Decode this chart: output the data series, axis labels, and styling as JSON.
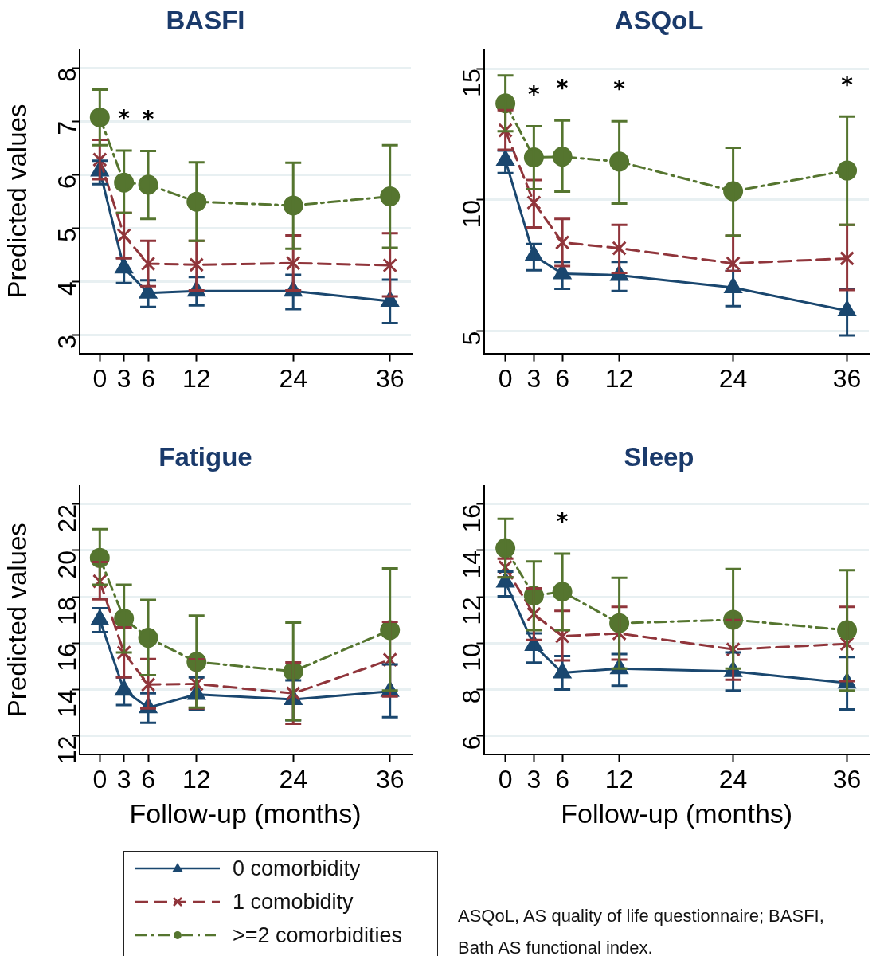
{
  "chart_data": [
    {
      "type": "line",
      "title": "BASFI",
      "ylabel": "Predicted values",
      "x": [
        0,
        3,
        6,
        12,
        24,
        36
      ],
      "xlim": [
        -2.5,
        38.6
      ],
      "xticks": [
        0,
        3,
        6,
        12,
        24,
        36
      ],
      "ylim": [
        2.65,
        8.35
      ],
      "yticks": [
        3,
        4,
        5,
        6,
        7,
        8
      ],
      "grid": "y",
      "legend": "bottom",
      "series": [
        {
          "name": "0 comorbidity",
          "color": "#1a476f",
          "marker": "triangle",
          "line_style": "solid",
          "values": [
            6.07,
            4.25,
            3.78,
            3.82,
            3.82,
            3.63
          ],
          "errors": [
            [
              5.82,
              6.26
            ],
            [
              3.97,
              4.44
            ],
            [
              3.52,
              4.02
            ],
            [
              3.55,
              4.08
            ],
            [
              3.48,
              4.12
            ],
            [
              3.22,
              4.03
            ]
          ]
        },
        {
          "name": "1 comobidity",
          "color": "#90353b",
          "marker": "cross",
          "line_style": "dashed",
          "values": [
            6.28,
            4.86,
            4.33,
            4.31,
            4.34,
            4.3
          ],
          "errors": [
            [
              5.91,
              6.65
            ],
            [
              4.43,
              5.28
            ],
            [
              3.91,
              4.76
            ],
            [
              3.83,
              4.76
            ],
            [
              3.83,
              4.86
            ],
            [
              3.72,
              4.9
            ]
          ]
        },
        {
          "name": ">=2 comorbidities",
          "color": "#55752f",
          "marker": "circle",
          "line_style": "dashdot",
          "values": [
            7.07,
            5.85,
            5.81,
            5.49,
            5.42,
            5.59
          ],
          "errors": [
            [
              6.55,
              7.59
            ],
            [
              5.28,
              6.45
            ],
            [
              5.17,
              6.44
            ],
            [
              4.76,
              6.23
            ],
            [
              4.61,
              6.22
            ],
            [
              4.63,
              6.55
            ]
          ]
        }
      ],
      "annotations": [
        {
          "text": "*",
          "x": 3,
          "y": 5.85
        },
        {
          "text": "*",
          "x": 6,
          "y": 5.81
        }
      ]
    },
    {
      "type": "line",
      "title": "ASQoL",
      "x": [
        0,
        3,
        6,
        12,
        24,
        36
      ],
      "xlim": [
        -2.2,
        38.3
      ],
      "xticks": [
        0,
        3,
        6,
        12,
        24,
        36
      ],
      "ylim": [
        4.15,
        15.75
      ],
      "yticks": [
        5,
        10,
        15
      ],
      "grid": "y",
      "legend": "bottom",
      "series": [
        {
          "name": "0 comorbidity",
          "color": "#1a476f",
          "marker": "triangle",
          "line_style": "solid",
          "values": [
            11.52,
            7.87,
            7.19,
            7.13,
            6.66,
            5.78
          ],
          "errors": [
            [
              11.02,
              11.88
            ],
            [
              7.32,
              8.32
            ],
            [
              6.61,
              7.64
            ],
            [
              6.53,
              7.64
            ],
            [
              5.95,
              7.29
            ],
            [
              4.84,
              6.61
            ]
          ]
        },
        {
          "name": "1 comobidity",
          "color": "#90353b",
          "marker": "cross",
          "line_style": "dashed",
          "values": [
            12.65,
            9.9,
            8.38,
            8.16,
            7.58,
            7.77
          ],
          "errors": [
            [
              11.91,
              13.42
            ],
            [
              8.95,
              10.76
            ],
            [
              7.48,
              9.28
            ],
            [
              7.22,
              9.05
            ],
            [
              7.29,
              8.63
            ],
            [
              6.57,
              9.05
            ]
          ]
        },
        {
          "name": ">=2 comorbidities",
          "color": "#55752f",
          "marker": "circle",
          "line_style": "dashdot",
          "values": [
            13.68,
            11.62,
            11.65,
            11.46,
            10.33,
            11.12
          ],
          "errors": [
            [
              12.62,
              14.74
            ],
            [
              10.41,
              12.81
            ],
            [
              10.32,
              13.03
            ],
            [
              9.86,
              13.0
            ],
            [
              8.64,
              11.99
            ],
            [
              9.05,
              13.18
            ]
          ]
        }
      ],
      "annotations": [
        {
          "text": "*",
          "x": 3,
          "y": 11.62
        },
        {
          "text": "*",
          "x": 6,
          "y": 11.65
        },
        {
          "text": "*",
          "x": 12,
          "y": 11.46
        },
        {
          "text": "*",
          "x": 36,
          "y": 13.18
        }
      ]
    },
    {
      "type": "line",
      "title": "Fatigue",
      "ylabel": "Predicted values",
      "xlabel": "Follow-up (months)",
      "x": [
        0,
        3,
        6,
        12,
        24,
        36
      ],
      "xlim": [
        -2.5,
        38.6
      ],
      "xticks": [
        0,
        3,
        6,
        12,
        24,
        36
      ],
      "ylim": [
        11.2,
        22.8
      ],
      "yticks": [
        12,
        14,
        16,
        18,
        20,
        22
      ],
      "grid": "y",
      "legend": "bottom",
      "series": [
        {
          "name": "0 comorbidity",
          "color": "#1a476f",
          "marker": "triangle",
          "line_style": "solid",
          "values": [
            17.01,
            13.97,
            13.21,
            13.79,
            13.57,
            13.92
          ],
          "errors": [
            [
              16.47,
              17.51
            ],
            [
              13.33,
              14.52
            ],
            [
              12.56,
              13.83
            ],
            [
              13.1,
              14.52
            ],
            [
              12.67,
              14.39
            ],
            [
              12.8,
              15.08
            ]
          ]
        },
        {
          "name": "1 comobidity",
          "color": "#90353b",
          "marker": "cross",
          "line_style": "dashed",
          "values": [
            18.67,
            15.59,
            14.21,
            14.24,
            13.83,
            15.28
          ],
          "errors": [
            [
              17.89,
              19.5
            ],
            [
              14.52,
              16.68
            ],
            [
              13.18,
              15.31
            ],
            [
              13.18,
              15.3
            ],
            [
              12.52,
              15.17
            ],
            [
              13.7,
              16.92
            ]
          ]
        },
        {
          "name": ">=2 comorbidities",
          "color": "#55752f",
          "marker": "circle",
          "line_style": "dashdot",
          "values": [
            19.68,
            17.06,
            16.23,
            15.19,
            14.78,
            16.56
          ],
          "errors": [
            [
              18.52,
              20.92
            ],
            [
              15.6,
              18.52
            ],
            [
              14.62,
              17.87
            ],
            [
              13.21,
              17.19
            ],
            [
              12.67,
              16.89
            ],
            [
              13.95,
              19.23
            ]
          ]
        }
      ]
    },
    {
      "type": "line",
      "title": "Sleep",
      "xlabel": "Follow-up (months)",
      "x": [
        0,
        3,
        6,
        12,
        24,
        36
      ],
      "xlim": [
        -2.2,
        38.3
      ],
      "xticks": [
        0,
        3,
        6,
        12,
        24,
        36
      ],
      "ylim": [
        5.2,
        16.8
      ],
      "yticks": [
        6,
        8,
        10,
        12,
        14,
        16
      ],
      "grid": "y",
      "legend": "bottom",
      "series": [
        {
          "name": "0 comorbidity",
          "color": "#1a476f",
          "marker": "triangle",
          "line_style": "solid",
          "values": [
            12.64,
            9.91,
            8.72,
            8.9,
            8.78,
            8.28
          ],
          "errors": [
            [
              12.02,
              13.09
            ],
            [
              9.16,
              10.42
            ],
            [
              8.0,
              9.44
            ],
            [
              8.16,
              9.53
            ],
            [
              7.95,
              9.6
            ],
            [
              7.14,
              9.4
            ]
          ]
        },
        {
          "name": "1 comobidity",
          "color": "#90353b",
          "marker": "cross",
          "line_style": "dashed",
          "values": [
            13.27,
            11.25,
            10.3,
            10.42,
            9.73,
            9.97
          ],
          "errors": [
            [
              12.85,
              13.65
            ],
            [
              10.14,
              12.37
            ],
            [
              9.25,
              11.39
            ],
            [
              9.29,
              11.57
            ],
            [
              8.42,
              11.0
            ],
            [
              8.36,
              11.57
            ]
          ]
        },
        {
          "name": ">=2 comorbidities",
          "color": "#55752f",
          "marker": "circle",
          "line_style": "dashdot",
          "values": [
            14.1,
            12.05,
            12.22,
            10.86,
            11.01,
            10.56
          ],
          "errors": [
            [
              12.84,
              15.37
            ],
            [
              10.56,
              13.53
            ],
            [
              10.56,
              13.86
            ],
            [
              8.9,
              12.82
            ],
            [
              8.9,
              13.2
            ],
            [
              7.95,
              13.15
            ]
          ]
        }
      ],
      "annotations": [
        {
          "text": "*",
          "x": 6,
          "y": 12.22
        },
        "ASQoL, AS quality of life questionnaire; BASFI, Bath AS functional index."
      ]
    }
  ]
}
